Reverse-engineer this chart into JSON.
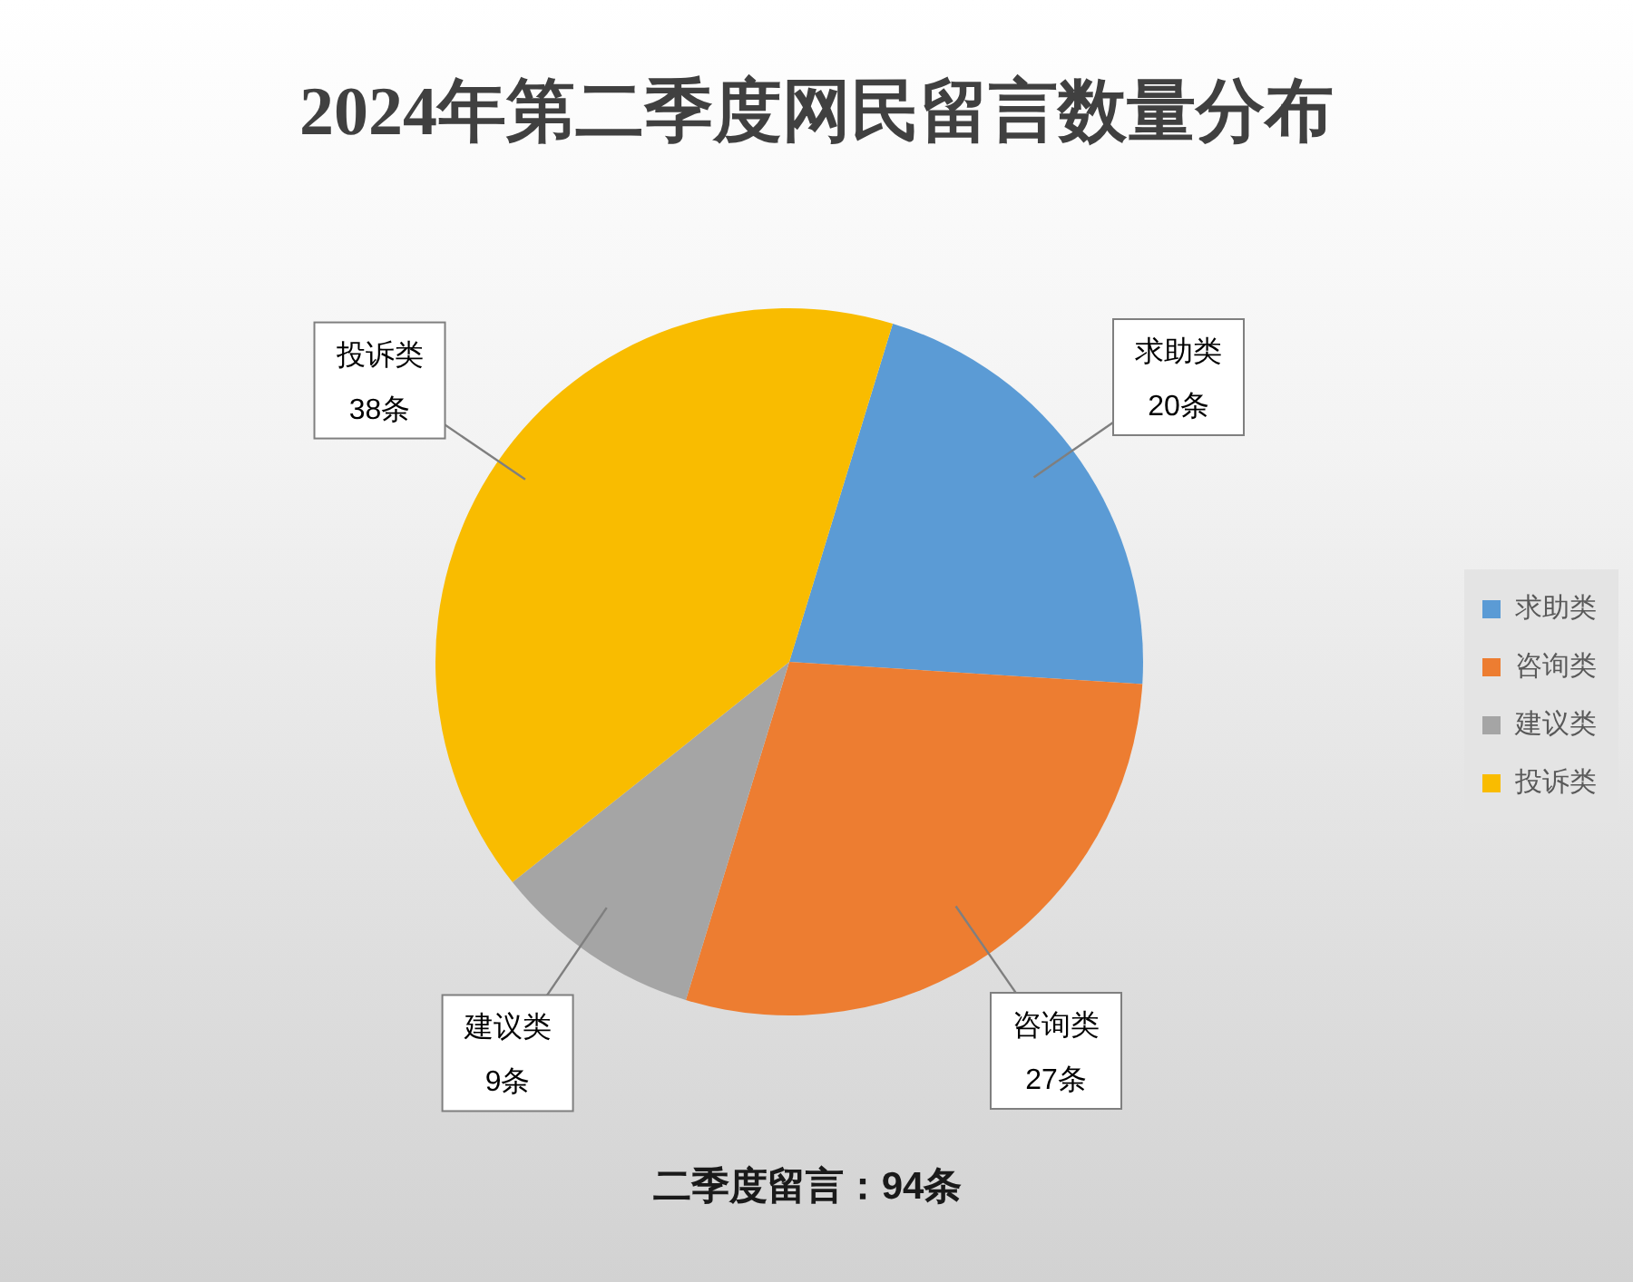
{
  "chart_data": {
    "type": "pie",
    "title": "2024年第二季度网民留言数量分布",
    "categories": [
      "求助类",
      "咨询类",
      "建议类",
      "投诉类"
    ],
    "values": [
      20,
      27,
      9,
      38
    ],
    "colors": [
      "#5b9bd5",
      "#ed7d31",
      "#a5a5a5",
      "#f9bc00"
    ],
    "value_labels": [
      "20条",
      "27条",
      "9条",
      "38条"
    ],
    "legend": "right",
    "annotations": [
      "二季度留言：94条"
    ]
  }
}
